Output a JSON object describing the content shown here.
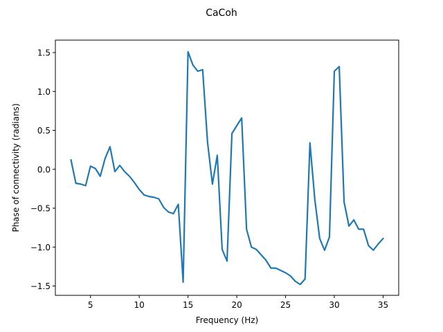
{
  "chart_data": {
    "type": "line",
    "title": "CaCoh",
    "xlabel": "Frequency (Hz)",
    "ylabel": "Phase of connectivity (radians)",
    "xlim": [
      1.4,
      36.6
    ],
    "ylim": [
      -1.62,
      1.66
    ],
    "xticks": [
      5,
      10,
      15,
      20,
      25,
      30,
      35
    ],
    "yticks": [
      -1.5,
      -1.0,
      -0.5,
      0.0,
      0.5,
      1.0,
      1.5
    ],
    "ytick_labels": [
      "−1.5",
      "−1.0",
      "−0.5",
      "0.0",
      "0.5",
      "1.0",
      "1.5"
    ],
    "grid": false,
    "series": [
      {
        "color": "#1f77b4",
        "x": [
          3,
          3.5,
          4,
          4.5,
          5,
          5.5,
          6,
          6.5,
          7,
          7.5,
          8,
          8.5,
          9,
          9.5,
          10,
          10.5,
          11,
          11.5,
          12,
          12.5,
          13,
          13.5,
          14,
          14.5,
          15,
          15.5,
          16,
          16.5,
          17,
          17.5,
          18,
          18.5,
          19,
          19.5,
          20,
          20.5,
          21,
          21.5,
          22,
          22.5,
          23,
          23.5,
          24,
          24.5,
          25,
          25.5,
          26,
          26.5,
          27,
          27.5,
          28,
          28.5,
          29,
          29.5,
          30,
          30.5,
          31,
          31.5,
          32,
          32.5,
          33,
          33.5,
          34,
          34.5,
          35
        ],
        "y": [
          0.12,
          -0.18,
          -0.19,
          -0.21,
          0.04,
          0.01,
          -0.09,
          0.14,
          0.29,
          -0.03,
          0.05,
          -0.03,
          -0.09,
          -0.17,
          -0.26,
          -0.33,
          -0.35,
          -0.36,
          -0.38,
          -0.49,
          -0.55,
          -0.57,
          -0.45,
          -1.45,
          1.51,
          1.34,
          1.26,
          1.28,
          0.35,
          -0.19,
          0.18,
          -1.03,
          -1.18,
          0.46,
          0.56,
          0.66,
          -0.77,
          -1.0,
          -1.03,
          -1.1,
          -1.17,
          -1.27,
          -1.27,
          -1.3,
          -1.33,
          -1.37,
          -1.44,
          -1.48,
          -1.41,
          0.34,
          -0.39,
          -0.89,
          -1.04,
          -0.87,
          1.26,
          1.32,
          -0.42,
          -0.73,
          -0.65,
          -0.77,
          -0.77,
          -0.98,
          -1.04,
          -0.96,
          -0.89
        ]
      }
    ]
  }
}
